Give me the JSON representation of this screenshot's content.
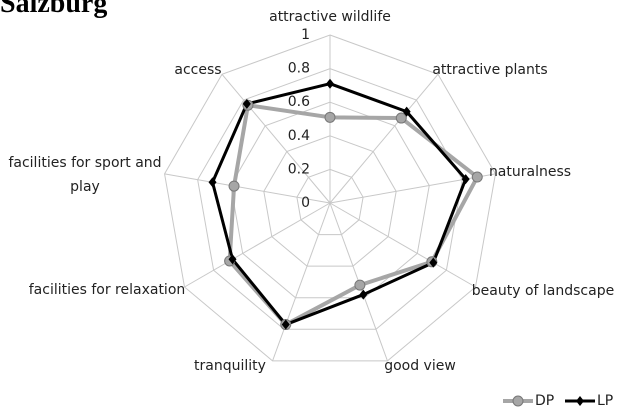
{
  "chart_data": {
    "type": "radar",
    "title": "Salzburg",
    "categories": [
      "attractive wildlife",
      "attractive plants",
      "naturalness",
      "beauty of landscape",
      "good view",
      "tranquility",
      "facilities for relaxation",
      "facilities for sport and play",
      "access"
    ],
    "series": [
      {
        "name": "DP",
        "color": "#a6a6a6",
        "marker": "circle",
        "values": [
          0.51,
          0.66,
          0.89,
          0.7,
          0.52,
          0.77,
          0.69,
          0.58,
          0.76
        ]
      },
      {
        "name": "LP",
        "color": "#000000",
        "marker": "diamond",
        "values": [
          0.71,
          0.71,
          0.82,
          0.71,
          0.58,
          0.77,
          0.67,
          0.71,
          0.77
        ]
      }
    ],
    "ylim": [
      0,
      1
    ],
    "yticks": [
      0,
      0.2,
      0.4,
      0.6,
      0.8,
      1
    ],
    "grid": true,
    "legend": "bottom-right"
  }
}
